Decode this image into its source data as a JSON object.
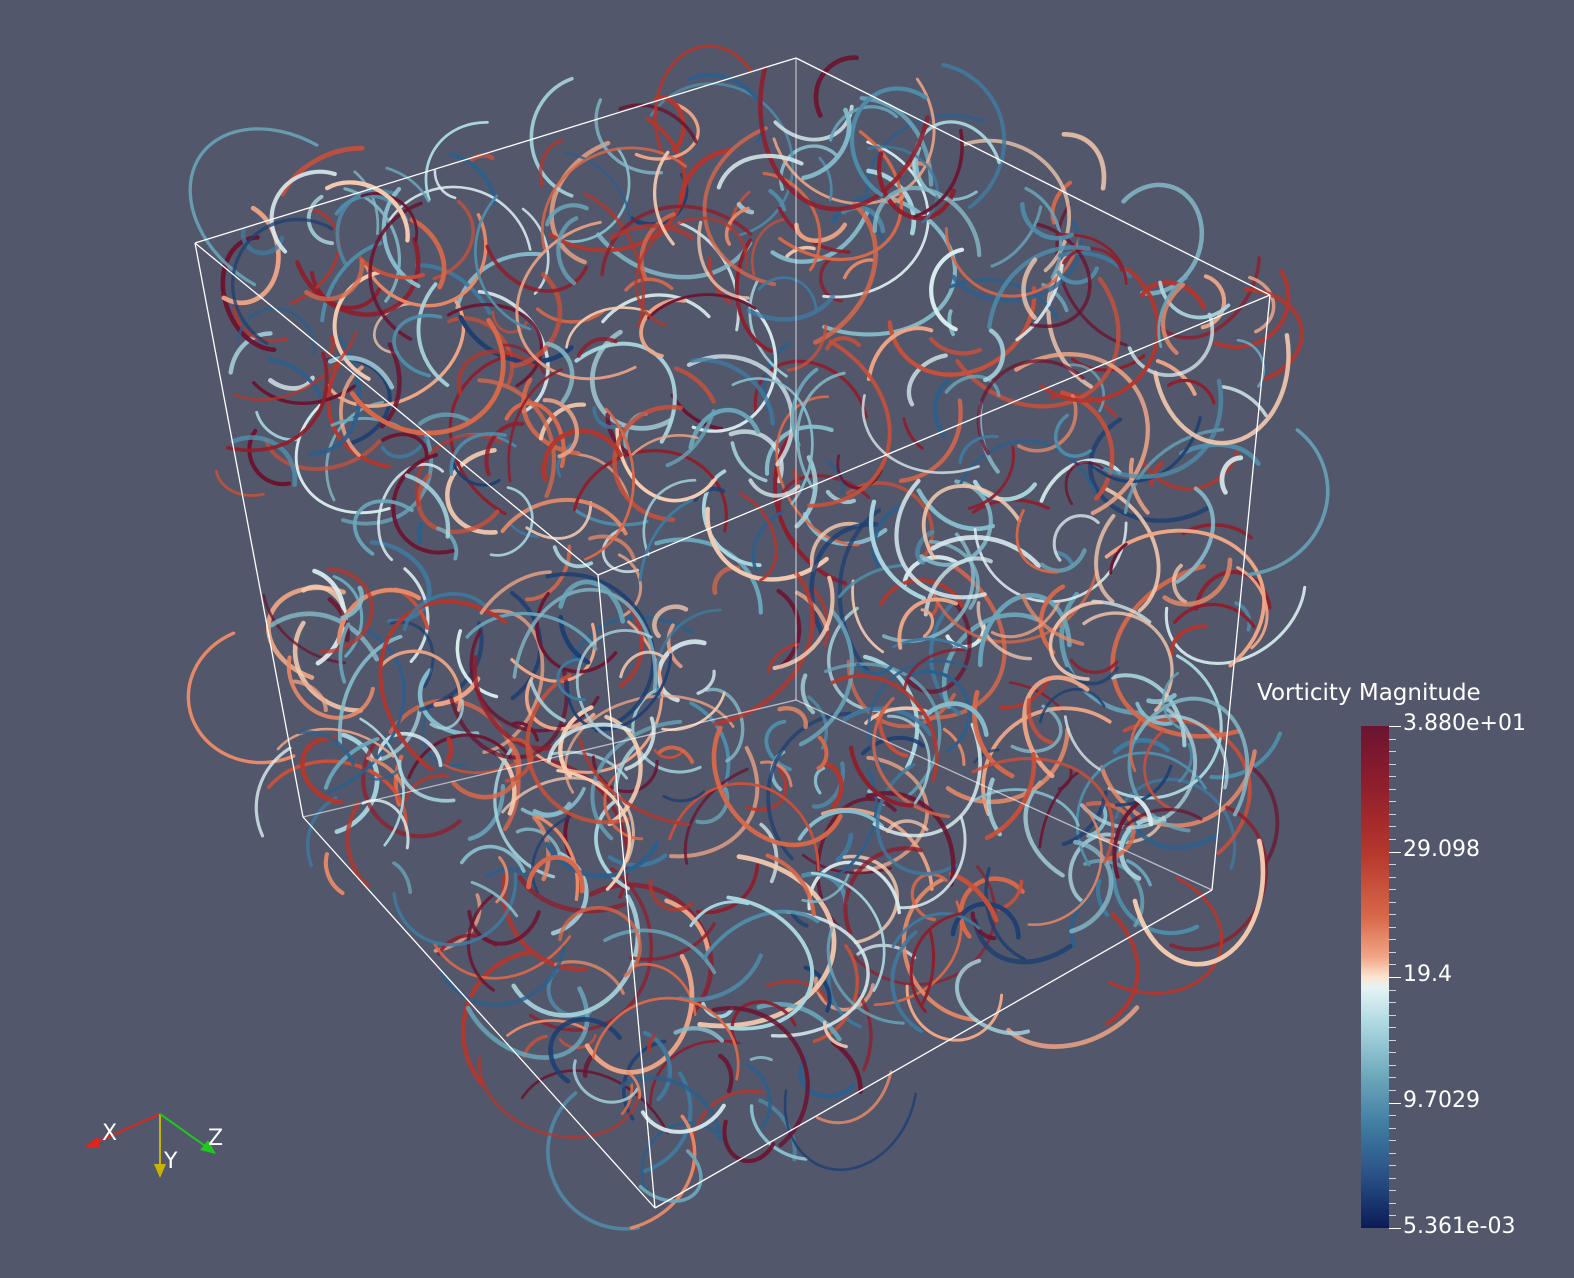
{
  "scene": {
    "description_icon": "streamline-tubes",
    "background_color": "#52576b"
  },
  "colorbar": {
    "title": "Vorticity Magnitude",
    "labels": [
      "3.880e+01",
      "29.098",
      "19.4",
      "9.7029",
      "5.361e-03"
    ],
    "colors": {
      "high": "#6b1430",
      "mid": "#fbe4d0",
      "low": "#0b1b55"
    }
  },
  "orientation_axes": {
    "x_label": "X",
    "y_label": "Y",
    "z_label": "Z",
    "x_color": "#e0241e",
    "y_color": "#c8b400",
    "z_color": "#1ec81e"
  }
}
